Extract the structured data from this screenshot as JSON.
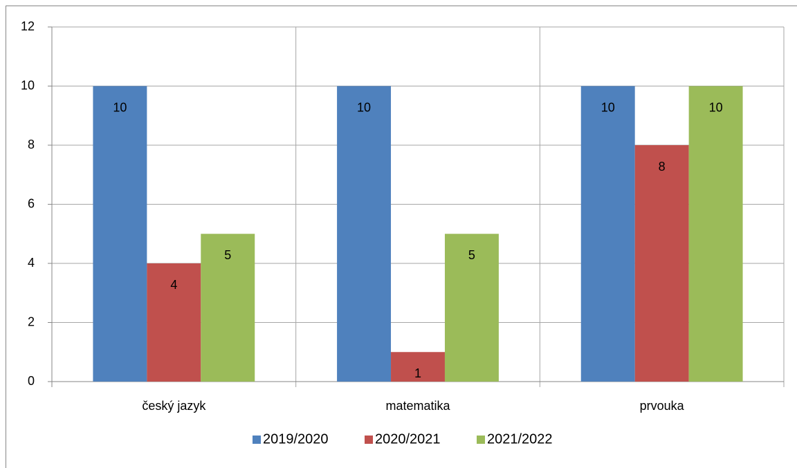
{
  "chart_data": {
    "type": "bar",
    "categories": [
      "český jazyk",
      "matematika",
      "prvouka"
    ],
    "series": [
      {
        "name": "2019/2020",
        "color": "#4f81bd",
        "values": [
          10,
          10,
          10
        ]
      },
      {
        "name": "2020/2021",
        "color": "#c0504d",
        "values": [
          4,
          1,
          8
        ]
      },
      {
        "name": "2021/2022",
        "color": "#9bbb59",
        "values": [
          5,
          5,
          10
        ]
      }
    ],
    "ylim": [
      0,
      12
    ],
    "yticks": [
      0,
      2,
      4,
      6,
      8,
      10,
      12
    ],
    "grid": true,
    "legend": "bottom"
  }
}
